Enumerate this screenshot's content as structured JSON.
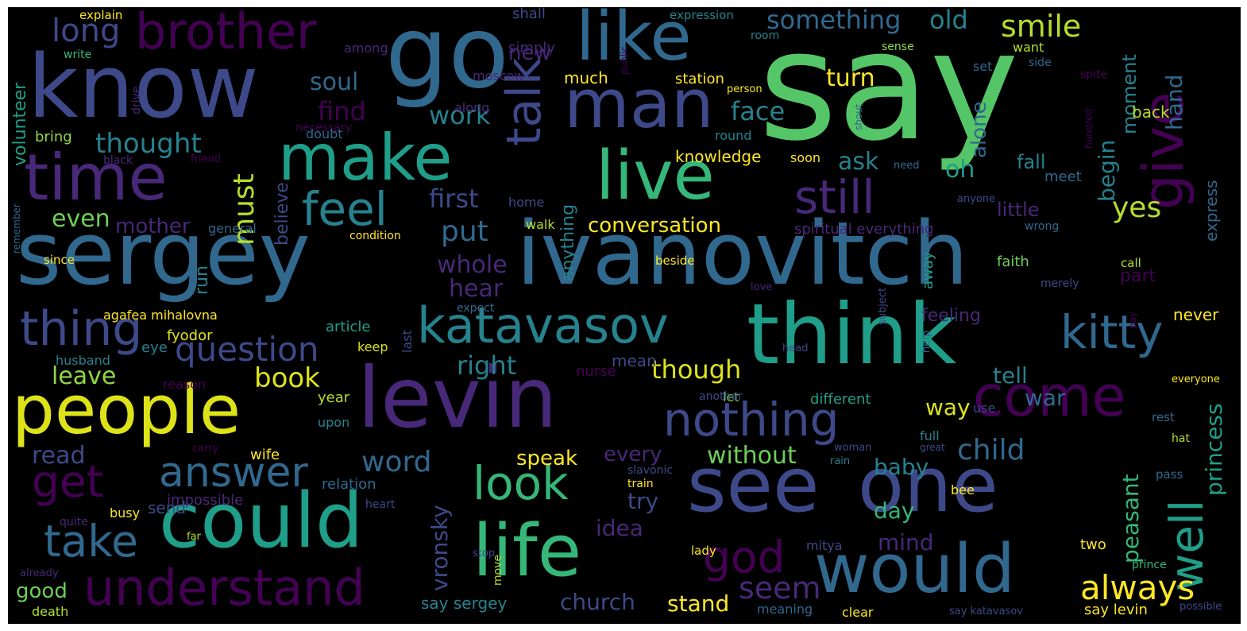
{
  "colors": {
    "background": "#000000",
    "palette": [
      "#440154",
      "#482878",
      "#3e4989",
      "#31688e",
      "#26828e",
      "#1f9e89",
      "#35b779",
      "#6ece58",
      "#b5de2b",
      "#fde725"
    ]
  },
  "words": [
    {
      "text": "say",
      "size": 190,
      "color": "#55c667"
    },
    {
      "text": "sergey",
      "size": 110,
      "color": "#31688e"
    },
    {
      "text": "ivanovitch",
      "size": 110,
      "color": "#31688e"
    },
    {
      "text": "levin",
      "size": 105,
      "color": "#482878"
    },
    {
      "text": "know",
      "size": 110,
      "color": "#3e4989"
    },
    {
      "text": "go",
      "size": 125,
      "color": "#31688e"
    },
    {
      "text": "think",
      "size": 105,
      "color": "#1f9e89"
    },
    {
      "text": "see",
      "size": 95,
      "color": "#3e4989"
    },
    {
      "text": "one",
      "size": 95,
      "color": "#3e4989"
    },
    {
      "text": "could",
      "size": 95,
      "color": "#1f9e89"
    },
    {
      "text": "people",
      "size": 85,
      "color": "#dde318"
    },
    {
      "text": "life",
      "size": 90,
      "color": "#35b779"
    },
    {
      "text": "would",
      "size": 85,
      "color": "#31688e"
    },
    {
      "text": "man",
      "size": 85,
      "color": "#3e4989"
    },
    {
      "text": "like",
      "size": 85,
      "color": "#31688e"
    },
    {
      "text": "live",
      "size": 85,
      "color": "#35b779"
    },
    {
      "text": "make",
      "size": 80,
      "color": "#1f9e89"
    },
    {
      "text": "time",
      "size": 80,
      "color": "#482878"
    },
    {
      "text": "give",
      "size": 70,
      "color": "#440154"
    },
    {
      "text": "come",
      "size": 70,
      "color": "#440154"
    },
    {
      "text": "brother",
      "size": 62,
      "color": "#440154"
    },
    {
      "text": "understand",
      "size": 62,
      "color": "#440154"
    },
    {
      "text": "talk",
      "size": 60,
      "color": "#3e4989"
    },
    {
      "text": "thing",
      "size": 60,
      "color": "#3e4989"
    },
    {
      "text": "katavasov",
      "size": 62,
      "color": "#26828e"
    },
    {
      "text": "kitty",
      "size": 58,
      "color": "#31688e"
    },
    {
      "text": "nothing",
      "size": 58,
      "color": "#3e4989"
    },
    {
      "text": "still",
      "size": 58,
      "color": "#482878"
    },
    {
      "text": "well",
      "size": 58,
      "color": "#1f9e89"
    },
    {
      "text": "feel",
      "size": 58,
      "color": "#26828e"
    },
    {
      "text": "look",
      "size": 58,
      "color": "#35b779"
    },
    {
      "text": "god",
      "size": 55,
      "color": "#440154"
    },
    {
      "text": "get",
      "size": 55,
      "color": "#440154"
    },
    {
      "text": "take",
      "size": 55,
      "color": "#31688e"
    },
    {
      "text": "answer",
      "size": 52,
      "color": "#31688e"
    },
    {
      "text": "question",
      "size": 42,
      "color": "#3e4989"
    },
    {
      "text": "always",
      "size": 42,
      "color": "#fde725"
    },
    {
      "text": "seem",
      "size": 38,
      "color": "#482878"
    },
    {
      "text": "word",
      "size": 36,
      "color": "#31688e"
    },
    {
      "text": "smile",
      "size": 38,
      "color": "#b5de2b"
    },
    {
      "text": "long",
      "size": 40,
      "color": "#3e4989"
    },
    {
      "text": "something",
      "size": 32,
      "color": "#31688e"
    },
    {
      "text": "old",
      "size": 32,
      "color": "#26828e"
    },
    {
      "text": "must",
      "size": 36,
      "color": "#b5de2b"
    },
    {
      "text": "thought",
      "size": 34,
      "color": "#26828e"
    },
    {
      "text": "book",
      "size": 34,
      "color": "#dde318"
    },
    {
      "text": "put",
      "size": 36,
      "color": "#31688e"
    },
    {
      "text": "child",
      "size": 36,
      "color": "#31688e"
    },
    {
      "text": "yes",
      "size": 36,
      "color": "#b5de2b"
    },
    {
      "text": "first",
      "size": 32,
      "color": "#3e4989"
    },
    {
      "text": "right",
      "size": 32,
      "color": "#26828e"
    },
    {
      "text": "though",
      "size": 32,
      "color": "#dde318"
    },
    {
      "text": "whole",
      "size": 30,
      "color": "#482878"
    },
    {
      "text": "hear",
      "size": 30,
      "color": "#482878"
    },
    {
      "text": "leave",
      "size": 30,
      "color": "#8fd744"
    },
    {
      "text": "find",
      "size": 32,
      "color": "#440154"
    },
    {
      "text": "face",
      "size": 32,
      "color": "#26828e"
    },
    {
      "text": "work",
      "size": 32,
      "color": "#26828e"
    },
    {
      "text": "ask",
      "size": 30,
      "color": "#26828e"
    },
    {
      "text": "oh",
      "size": 30,
      "color": "#1f9e89"
    },
    {
      "text": "turn",
      "size": 30,
      "color": "#fde725"
    },
    {
      "text": "soul",
      "size": 30,
      "color": "#31688e"
    },
    {
      "text": "new",
      "size": 26,
      "color": "#482878"
    },
    {
      "text": "conversation",
      "size": 26,
      "color": "#fde725"
    },
    {
      "text": "mother",
      "size": 26,
      "color": "#482878"
    },
    {
      "text": "even",
      "size": 30,
      "color": "#6ece58"
    },
    {
      "text": "without",
      "size": 30,
      "color": "#6ece58"
    },
    {
      "text": "speak",
      "size": 26,
      "color": "#fde725"
    },
    {
      "text": "every",
      "size": 26,
      "color": "#482878"
    },
    {
      "text": "baby",
      "size": 28,
      "color": "#26828e"
    },
    {
      "text": "try",
      "size": 28,
      "color": "#3e4989"
    },
    {
      "text": "day",
      "size": 28,
      "color": "#35b779"
    },
    {
      "text": "idea",
      "size": 28,
      "color": "#482878"
    },
    {
      "text": "mind",
      "size": 28,
      "color": "#482878"
    },
    {
      "text": "read",
      "size": 30,
      "color": "#3e4989"
    },
    {
      "text": "good",
      "size": 26,
      "color": "#6ece58"
    },
    {
      "text": "church",
      "size": 28,
      "color": "#3e4989"
    },
    {
      "text": "stand",
      "size": 28,
      "color": "#fde725"
    },
    {
      "text": "way",
      "size": 28,
      "color": "#dde318"
    },
    {
      "text": "tell",
      "size": 28,
      "color": "#26828e"
    },
    {
      "text": "war",
      "size": 28,
      "color": "#31688e"
    },
    {
      "text": "fall",
      "size": 24,
      "color": "#26828e"
    },
    {
      "text": "little",
      "size": 24,
      "color": "#482878"
    },
    {
      "text": "meet",
      "size": 18,
      "color": "#31688e"
    },
    {
      "text": "begin",
      "size": 28,
      "color": "#26828e"
    },
    {
      "text": "moment",
      "size": 24,
      "color": "#26828e"
    },
    {
      "text": "hand",
      "size": 28,
      "color": "#31688e"
    },
    {
      "text": "express",
      "size": 20,
      "color": "#31688e"
    },
    {
      "text": "back",
      "size": 20,
      "color": "#b5de2b"
    },
    {
      "text": "alone",
      "size": 26,
      "color": "#31688e"
    },
    {
      "text": "believe",
      "size": 22,
      "color": "#3e4989"
    },
    {
      "text": "anything",
      "size": 22,
      "color": "#26828e"
    },
    {
      "text": "run",
      "size": 22,
      "color": "#26828e"
    },
    {
      "text": "vronsky",
      "size": 28,
      "color": "#3e4989"
    },
    {
      "text": "peasant",
      "size": 28,
      "color": "#35b779"
    },
    {
      "text": "princess",
      "size": 28,
      "color": "#1f9e89"
    },
    {
      "text": "volunteer",
      "size": 22,
      "color": "#1f9e89"
    },
    {
      "text": "knowledge",
      "size": 20,
      "color": "#fde725"
    },
    {
      "text": "soon",
      "size": 16,
      "color": "#fde725"
    },
    {
      "text": "much",
      "size": 20,
      "color": "#fde725"
    },
    {
      "text": "station",
      "size": 18,
      "color": "#fde725"
    },
    {
      "text": "moscow",
      "size": 16,
      "color": "#482878"
    },
    {
      "text": "along",
      "size": 16,
      "color": "#482878"
    },
    {
      "text": "simply",
      "size": 18,
      "color": "#482878"
    },
    {
      "text": "shall",
      "size": 18,
      "color": "#3e4989"
    },
    {
      "text": "among",
      "size": 16,
      "color": "#482878"
    },
    {
      "text": "expression",
      "size": 15,
      "color": "#26828e"
    },
    {
      "text": "room",
      "size": 14,
      "color": "#26828e"
    },
    {
      "text": "public",
      "size": 12,
      "color": "#440154"
    },
    {
      "text": "sense",
      "size": 14,
      "color": "#8fd744"
    },
    {
      "text": "want",
      "size": 16,
      "color": "#b5de2b"
    },
    {
      "text": "set",
      "size": 16,
      "color": "#31688e"
    },
    {
      "text": "side",
      "size": 14,
      "color": "#31688e"
    },
    {
      "text": "spite",
      "size": 14,
      "color": "#440154"
    },
    {
      "text": "person",
      "size": 13,
      "color": "#fde725"
    },
    {
      "text": "shout",
      "size": 12,
      "color": "#31688e"
    },
    {
      "text": "hundred",
      "size": 12,
      "color": "#440154"
    },
    {
      "text": "drive",
      "size": 14,
      "color": "#482878"
    },
    {
      "text": "necessary",
      "size": 14,
      "color": "#440154"
    },
    {
      "text": "doubt",
      "size": 16,
      "color": "#31688e"
    },
    {
      "text": "bring",
      "size": 18,
      "color": "#8fd744"
    },
    {
      "text": "black",
      "size": 14,
      "color": "#482878"
    },
    {
      "text": "friend",
      "size": 13,
      "color": "#440154"
    },
    {
      "text": "need",
      "size": 13,
      "color": "#31688e"
    },
    {
      "text": "anyone",
      "size": 13,
      "color": "#3e4989"
    },
    {
      "text": "home",
      "size": 16,
      "color": "#3e4989"
    },
    {
      "text": "walk",
      "size": 16,
      "color": "#b5de2b"
    },
    {
      "text": "condition",
      "size": 14,
      "color": "#fde725"
    },
    {
      "text": "general",
      "size": 16,
      "color": "#31688e"
    },
    {
      "text": "remember",
      "size": 12,
      "color": "#31688e"
    },
    {
      "text": "since",
      "size": 15,
      "color": "#fde725"
    },
    {
      "text": "explain",
      "size": 15,
      "color": "#fde725"
    },
    {
      "text": "write",
      "size": 14,
      "color": "#35b779"
    },
    {
      "text": "spiritual everything",
      "size": 18,
      "color": "#482878"
    },
    {
      "text": "wrong",
      "size": 14,
      "color": "#31688e"
    },
    {
      "text": "faith",
      "size": 18,
      "color": "#6ece58"
    },
    {
      "text": "call",
      "size": 15,
      "color": "#b5de2b"
    },
    {
      "text": "merely",
      "size": 14,
      "color": "#3e4989"
    },
    {
      "text": "part",
      "size": 22,
      "color": "#440154"
    },
    {
      "text": "away",
      "size": 18,
      "color": "#1f9e89"
    },
    {
      "text": "beside",
      "size": 15,
      "color": "#fde725"
    },
    {
      "text": "love",
      "size": 13,
      "color": "#482878"
    },
    {
      "text": "subject",
      "size": 13,
      "color": "#3e4989"
    },
    {
      "text": "expect",
      "size": 14,
      "color": "#31688e"
    },
    {
      "text": "agafea mihalovna",
      "size": 16,
      "color": "#fde725"
    },
    {
      "text": "fyodor",
      "size": 18,
      "color": "#dde318"
    },
    {
      "text": "article",
      "size": 18,
      "color": "#1f9e89"
    },
    {
      "text": "feeling",
      "size": 22,
      "color": "#482878"
    },
    {
      "text": "never",
      "size": 20,
      "color": "#fde725"
    },
    {
      "text": "pay",
      "size": 12,
      "color": "#440154"
    },
    {
      "text": "keep",
      "size": 16,
      "color": "#dde318"
    },
    {
      "text": "last",
      "size": 16,
      "color": "#3e4989"
    },
    {
      "text": "mean",
      "size": 20,
      "color": "#3e4989"
    },
    {
      "text": "nurse",
      "size": 18,
      "color": "#440154"
    },
    {
      "text": "husband",
      "size": 16,
      "color": "#26828e"
    },
    {
      "text": "eye",
      "size": 18,
      "color": "#26828e"
    },
    {
      "text": "reason",
      "size": 16,
      "color": "#440154"
    },
    {
      "text": "year",
      "size": 18,
      "color": "#b5de2b"
    },
    {
      "text": "let",
      "size": 16,
      "color": "#6ece58"
    },
    {
      "text": "another",
      "size": 14,
      "color": "#3e4989"
    },
    {
      "text": "head",
      "size": 13,
      "color": "#3e4989"
    },
    {
      "text": "help",
      "size": 13,
      "color": "#31688e"
    },
    {
      "text": "different",
      "size": 18,
      "color": "#1f9e89"
    },
    {
      "text": "use",
      "size": 16,
      "color": "#3e4989"
    },
    {
      "text": "everyone",
      "size": 13,
      "color": "#fde725"
    },
    {
      "text": "rest",
      "size": 15,
      "color": "#31688e"
    },
    {
      "text": "hat",
      "size": 14,
      "color": "#b5de2b"
    },
    {
      "text": "upon",
      "size": 16,
      "color": "#26828e"
    },
    {
      "text": "wife",
      "size": 18,
      "color": "#fde725"
    },
    {
      "text": "carry",
      "size": 13,
      "color": "#440154"
    },
    {
      "text": "woman",
      "size": 13,
      "color": "#3e4989"
    },
    {
      "text": "rain",
      "size": 13,
      "color": "#26828e"
    },
    {
      "text": "full",
      "size": 16,
      "color": "#26828e"
    },
    {
      "text": "great",
      "size": 12,
      "color": "#3e4989"
    },
    {
      "text": "pass",
      "size": 15,
      "color": "#31688e"
    },
    {
      "text": "relation",
      "size": 18,
      "color": "#31688e"
    },
    {
      "text": "slavonic",
      "size": 14,
      "color": "#3e4989"
    },
    {
      "text": "impossible",
      "size": 18,
      "color": "#482878"
    },
    {
      "text": "train",
      "size": 14,
      "color": "#fde725"
    },
    {
      "text": "send",
      "size": 20,
      "color": "#3e4989"
    },
    {
      "text": "heart",
      "size": 14,
      "color": "#3e4989"
    },
    {
      "text": "busy",
      "size": 16,
      "color": "#fde725"
    },
    {
      "text": "bee",
      "size": 16,
      "color": "#fde725"
    },
    {
      "text": "quite",
      "size": 14,
      "color": "#482878"
    },
    {
      "text": "far",
      "size": 13,
      "color": "#b5de2b"
    },
    {
      "text": "stop",
      "size": 13,
      "color": "#3e4989"
    },
    {
      "text": "lady",
      "size": 15,
      "color": "#fde725"
    },
    {
      "text": "mitya",
      "size": 16,
      "color": "#3e4989"
    },
    {
      "text": "two",
      "size": 18,
      "color": "#fde725"
    },
    {
      "text": "already",
      "size": 13,
      "color": "#482878"
    },
    {
      "text": "move",
      "size": 14,
      "color": "#b5de2b"
    },
    {
      "text": "prince",
      "size": 14,
      "color": "#35b779"
    },
    {
      "text": "say sergey",
      "size": 20,
      "color": "#26828e"
    },
    {
      "text": "death",
      "size": 16,
      "color": "#b5de2b"
    },
    {
      "text": "meaning",
      "size": 16,
      "color": "#31688e"
    },
    {
      "text": "clear",
      "size": 16,
      "color": "#fde725"
    },
    {
      "text": "say katavasov",
      "size": 13,
      "color": "#3e4989"
    },
    {
      "text": "say levin",
      "size": 18,
      "color": "#fde725"
    },
    {
      "text": "possible",
      "size": 13,
      "color": "#3e4989"
    },
    {
      "text": "round",
      "size": 16,
      "color": "#26828e"
    }
  ]
}
